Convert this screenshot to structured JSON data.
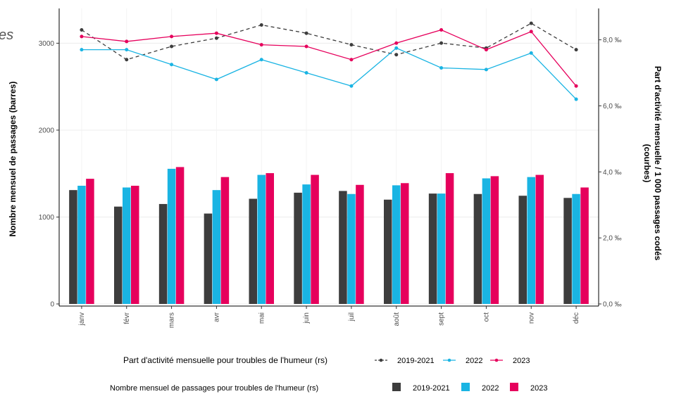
{
  "title_fragment": "es",
  "chart_data": {
    "type": "bar+line",
    "categories": [
      "janv",
      "févr",
      "mars",
      "avr",
      "mai",
      "juin",
      "juil",
      "août",
      "sept",
      "oct",
      "nov",
      "déc"
    ],
    "bars": {
      "series": [
        {
          "name": "2019-2021",
          "color": "#3d3d3d",
          "values": [
            1310,
            1120,
            1150,
            1040,
            1210,
            1280,
            1300,
            1200,
            1270,
            1265,
            1245,
            1220
          ]
        },
        {
          "name": "2022",
          "color": "#1ab4e3",
          "values": [
            1360,
            1340,
            1555,
            1310,
            1485,
            1375,
            1265,
            1365,
            1270,
            1445,
            1460,
            1265
          ]
        },
        {
          "name": "2023",
          "color": "#e6005c",
          "values": [
            1440,
            1360,
            1575,
            1460,
            1505,
            1485,
            1370,
            1390,
            1505,
            1470,
            1485,
            1340
          ]
        }
      ]
    },
    "lines": {
      "series": [
        {
          "name": "2019-2021",
          "color": "#3d3d3d",
          "dashed": true,
          "values": [
            8.3,
            7.4,
            7.8,
            8.05,
            8.45,
            8.2,
            7.85,
            7.55,
            7.9,
            7.75,
            8.5,
            7.7
          ]
        },
        {
          "name": "2022",
          "color": "#1ab4e3",
          "dashed": false,
          "values": [
            7.7,
            7.7,
            7.25,
            6.8,
            7.4,
            7.0,
            6.6,
            7.75,
            7.15,
            7.1,
            7.6,
            6.2
          ]
        },
        {
          "name": "2023",
          "color": "#e6005c",
          "dashed": false,
          "values": [
            8.1,
            7.95,
            8.1,
            8.2,
            7.85,
            7.8,
            7.4,
            7.9,
            8.3,
            7.7,
            8.25,
            6.6
          ]
        }
      ]
    },
    "y_left": {
      "label": "Nombre mensuel de passages (barres)",
      "ticks": [
        "0",
        "1000",
        "2000",
        "3000"
      ],
      "tick_values": [
        0,
        1000,
        2000,
        3000
      ],
      "range": [
        0,
        3400
      ]
    },
    "y_right": {
      "label_line1": "Part d'activité mensuelle / 1 000 passages codés",
      "label_line2": "(courbes)",
      "ticks": [
        "0,0 ‰",
        "2,0 ‰",
        "4,0 ‰",
        "6,0 ‰",
        "8,0 ‰"
      ],
      "tick_values": [
        0,
        2,
        4,
        6,
        8
      ],
      "range": [
        0,
        8.95
      ]
    },
    "grid": true,
    "legend_lines": {
      "title": "Part d'activité mensuelle pour troubles de l'humeur (rs)",
      "placement": "bottom"
    },
    "legend_bars": {
      "title": "Nombre mensuel de passages pour troubles de l'humeur (rs)",
      "placement": "bottom"
    }
  }
}
